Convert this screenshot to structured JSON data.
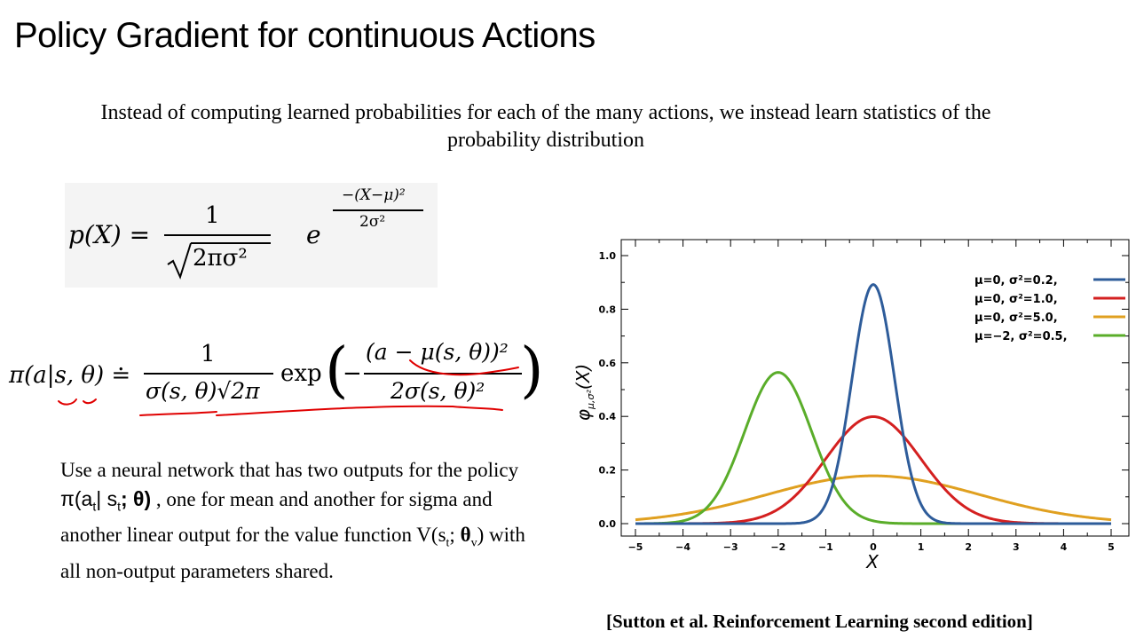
{
  "slide": {
    "title": "Policy Gradient for continuous Actions",
    "subtitle_line1": "Instead of computing learned probabilities for each of the many actions, we instead learn statistics of the",
    "subtitle_line2": "probability distribution",
    "citation": "[Sutton et al. Reinforcement Learning second edition]"
  },
  "gaussian_formula": {
    "lhs": "p(X) =",
    "numerator": "1",
    "denominator": "2πσ²",
    "base": "e",
    "exp_numerator": "−(X−μ)²",
    "exp_denominator": "2σ²"
  },
  "policy_formula": {
    "lhs": "π(a|s, θ) ≐",
    "numerator": "1",
    "denominator": "σ(s, θ)√2π",
    "exp_word": "exp",
    "exp_numerator": "(a − μ(s, θ))²",
    "exp_denominator": "2σ(s, θ)²",
    "minus": "−",
    "annotation_color": "#e00000"
  },
  "description": {
    "part1": "Use a neural network that has two outputs for the policy ",
    "pi": "π(a",
    "sub_t1": "t",
    "bar_s": "| s",
    "sub_t2": "t",
    "semicolon_theta": "; θ)",
    "part2": " , one for mean and another for sigma  and another linear output for the value function V(s",
    "sub_t3": "t",
    "part3": "; ",
    "theta_v": "θ",
    "sub_v": "v",
    "part4": ") with all non-output parameters shared."
  },
  "chart_data": {
    "type": "line",
    "xlabel": "X",
    "ylabel": "φμ,σ²(X)",
    "ylabel_main": "φ",
    "ylabel_sub": "μ,σ²",
    "ylabel_arg": "(X)",
    "xlim": [
      -5,
      5
    ],
    "ylim": [
      0,
      1.0
    ],
    "x_ticks": [
      "−5",
      "−4",
      "−3",
      "−2",
      "−1",
      "0",
      "1",
      "2",
      "3",
      "4",
      "5"
    ],
    "y_ticks": [
      "0.0",
      "0.2",
      "0.4",
      "0.6",
      "0.8",
      "1.0"
    ],
    "legend_position": "top-right",
    "grid": false,
    "series": [
      {
        "name": "μ=0,  σ²=0.2,",
        "mu": 0,
        "var": 0.2,
        "color": "#2e5c9a"
      },
      {
        "name": "μ=0,  σ²=1.0,",
        "mu": 0,
        "var": 1.0,
        "color": "#d42020"
      },
      {
        "name": "μ=0,  σ²=5.0,",
        "mu": 0,
        "var": 5.0,
        "color": "#e0a020"
      },
      {
        "name": "μ=−2, σ²=0.5,",
        "mu": -2,
        "var": 0.5,
        "color": "#5aad2a"
      }
    ]
  }
}
